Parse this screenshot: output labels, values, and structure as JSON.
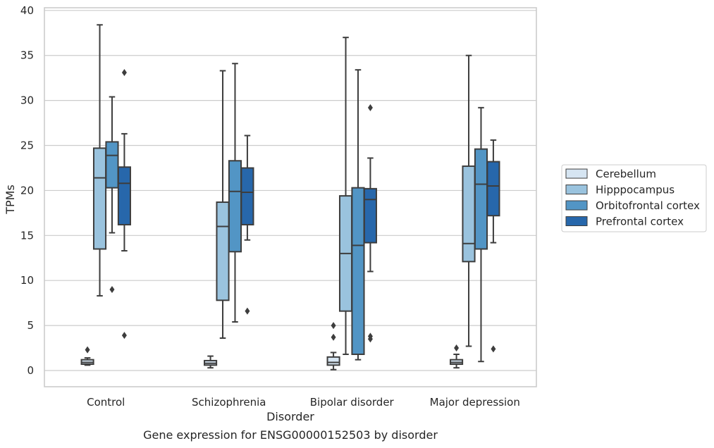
{
  "chart_data": {
    "type": "box",
    "xlabel": "Disorder",
    "ylabel": "TPMs",
    "caption": "Gene expression for ENSG00000152503 by disorder",
    "ylim": [
      -1.8,
      40.3
    ],
    "yticks": [
      "0",
      "5",
      "10",
      "15",
      "20",
      "25",
      "30",
      "35",
      "40"
    ],
    "ytick_values": [
      0,
      5,
      10,
      15,
      20,
      25,
      30,
      35,
      40
    ],
    "grid": true,
    "legend_position": "right",
    "categories": [
      "Control",
      "Schizophrenia",
      "Bipolar disorder",
      "Major depression"
    ],
    "series": [
      {
        "name": "Cerebellum",
        "color": "#d6e5f2",
        "boxes": [
          {
            "whislo": 0.6,
            "q1": 0.7,
            "med": 0.9,
            "q3": 1.2,
            "whishi": 1.4,
            "fliers": [
              2.3
            ]
          },
          {
            "whislo": 0.3,
            "q1": 0.6,
            "med": 0.8,
            "q3": 1.1,
            "whishi": 1.6,
            "fliers": []
          },
          {
            "whislo": 0.1,
            "q1": 0.6,
            "med": 0.9,
            "q3": 1.5,
            "whishi": 2.0,
            "fliers": [
              3.7,
              5.0
            ]
          },
          {
            "whislo": 0.3,
            "q1": 0.7,
            "med": 0.9,
            "q3": 1.2,
            "whishi": 1.8,
            "fliers": [
              2.5
            ]
          }
        ]
      },
      {
        "name": "Hipppocampus",
        "color": "#9ac3de",
        "boxes": [
          {
            "whislo": 8.3,
            "q1": 13.5,
            "med": 21.4,
            "q3": 24.7,
            "whishi": 38.4,
            "fliers": []
          },
          {
            "whislo": 3.6,
            "q1": 7.8,
            "med": 16.0,
            "q3": 18.7,
            "whishi": 33.3,
            "fliers": []
          },
          {
            "whislo": 1.8,
            "q1": 6.6,
            "med": 13.0,
            "q3": 19.4,
            "whishi": 37.0,
            "fliers": []
          },
          {
            "whislo": 2.7,
            "q1": 12.1,
            "med": 14.1,
            "q3": 22.7,
            "whishi": 35.0,
            "fliers": []
          }
        ]
      },
      {
        "name": "Orbitofrontal cortex",
        "color": "#5295c5",
        "boxes": [
          {
            "whislo": 15.3,
            "q1": 20.3,
            "med": 23.9,
            "q3": 25.4,
            "whishi": 30.4,
            "fliers": [
              9.0
            ]
          },
          {
            "whislo": 5.4,
            "q1": 13.2,
            "med": 19.9,
            "q3": 23.3,
            "whishi": 34.1,
            "fliers": []
          },
          {
            "whislo": 1.2,
            "q1": 1.8,
            "med": 13.9,
            "q3": 20.3,
            "whishi": 33.4,
            "fliers": []
          },
          {
            "whislo": 1.0,
            "q1": 13.5,
            "med": 20.7,
            "q3": 24.6,
            "whishi": 29.2,
            "fliers": []
          }
        ]
      },
      {
        "name": "Prefrontal cortex",
        "color": "#2767ab",
        "boxes": [
          {
            "whislo": 13.3,
            "q1": 16.2,
            "med": 20.8,
            "q3": 22.6,
            "whishi": 26.3,
            "fliers": [
              3.9,
              33.1
            ]
          },
          {
            "whislo": 14.5,
            "q1": 16.2,
            "med": 19.8,
            "q3": 22.5,
            "whishi": 26.1,
            "fliers": [
              6.6
            ]
          },
          {
            "whislo": 11.0,
            "q1": 14.2,
            "med": 19.0,
            "q3": 20.2,
            "whishi": 23.6,
            "fliers": [
              3.5,
              3.8,
              29.2
            ]
          },
          {
            "whislo": 14.2,
            "q1": 17.2,
            "med": 20.5,
            "q3": 23.2,
            "whishi": 25.6,
            "fliers": [
              2.4
            ]
          }
        ]
      }
    ]
  }
}
